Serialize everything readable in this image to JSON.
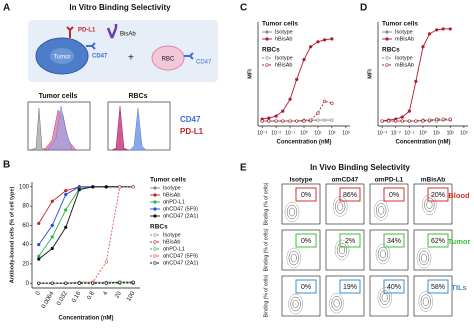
{
  "panel_a": {
    "panel": "A",
    "title": "In Vitro Binding Selectivity",
    "labels": {
      "pdl1": "PD-L1",
      "cd47": "CD47",
      "tumor": "Tumor",
      "bisab": "BisAb",
      "plus": "+",
      "rbc": "RBC",
      "rbc_cd47": "CD47"
    },
    "histogram_titles": [
      "Tumor cells",
      "RBCs"
    ],
    "legend": [
      {
        "name": "CD47",
        "color": "#3a6fd8"
      },
      {
        "name": "PD-L1",
        "color": "#c0272d"
      }
    ]
  },
  "chart_data": [
    {
      "type": "line",
      "panel": "B",
      "categories": [
        "0",
        "0.0064",
        "0.032",
        "0.16",
        "0.8",
        "4",
        "20",
        "100"
      ],
      "xlabel": "Concentration (nM)",
      "ylabel": "Antibody-bound cells (% of cell type)",
      "ylim": [
        -5,
        105
      ],
      "yticks": [
        0,
        20,
        40,
        60,
        80,
        100
      ],
      "series_groups": [
        {
          "name": "Tumor cells",
          "line_style": "solid",
          "series": [
            {
              "name": "Isotype",
              "color": "#888888",
              "values": [
                0,
                0,
                0,
                1,
                1,
                1,
                1,
                1
              ]
            },
            {
              "name": "hBisAb",
              "color": "#c0272d",
              "values": [
                62,
                85,
                96,
                100,
                100,
                100,
                100,
                100
              ]
            },
            {
              "name": "αhPD-L1",
              "color": "#2eb34a",
              "values": [
                28,
                48,
                76,
                98,
                100,
                100,
                100,
                100
              ]
            },
            {
              "name": "αhCD47 (5F9)",
              "color": "#1f4fd6",
              "values": [
                40,
                60,
                92,
                100,
                100,
                100,
                100,
                100
              ]
            },
            {
              "name": "αhCD47 (2A1)",
              "color": "#111111",
              "values": [
                25,
                36,
                58,
                97,
                100,
                100,
                100,
                100
              ]
            }
          ]
        },
        {
          "name": "RBCs",
          "line_style": "dashed",
          "series": [
            {
              "name": "Isotype",
              "color": "#888888",
              "values": [
                0,
                0,
                0,
                0,
                0,
                0,
                0,
                0
              ]
            },
            {
              "name": "hBisAb",
              "color": "#c0272d",
              "values": [
                0,
                0,
                0,
                0,
                0,
                0,
                0,
                0
              ]
            },
            {
              "name": "αhPD-L1",
              "color": "#2eb34a",
              "values": [
                0,
                0,
                0,
                0,
                0,
                0,
                0,
                0
              ]
            },
            {
              "name": "αhCD47 (5F9)",
              "color": "#e05a5a",
              "values": [
                0,
                0,
                0,
                0,
                1,
                22,
                100,
                100
              ]
            },
            {
              "name": "αhCD47 (2A1)",
              "color": "#111111",
              "values": [
                0,
                0,
                0,
                0,
                0,
                0,
                1,
                1
              ]
            }
          ]
        }
      ]
    },
    {
      "type": "line",
      "panel": "C",
      "x": [
        0.001,
        0.003,
        0.01,
        0.03,
        0.1,
        0.3,
        1,
        3,
        10,
        30,
        100
      ],
      "x_scale": "log",
      "xlim": [
        0.0005,
        2000
      ],
      "xticks": [
        {
          "value": 0.001,
          "label": "10⁻³"
        },
        {
          "value": 0.01,
          "label": "10⁻²"
        },
        {
          "value": 0.1,
          "label": "10⁻¹"
        },
        {
          "value": 1,
          "label": "10⁰"
        },
        {
          "value": 10,
          "label": "10¹"
        },
        {
          "value": 100,
          "label": "10²"
        },
        {
          "value": 1000,
          "label": "10³"
        }
      ],
      "xlabel": "Concentration (nM)",
      "ylabel": "MFI",
      "ylim": [
        -5,
        100
      ],
      "series_groups": [
        {
          "name": "Tumor cells",
          "line_style": "solid",
          "series": [
            {
              "name": "Isotype",
              "color": "#888888",
              "values": [
                0,
                0,
                0,
                0,
                0,
                0,
                1,
                1,
                1,
                1,
                1
              ]
            },
            {
              "name": "hBisAb",
              "color": "#b01c2e",
              "values": [
                2,
                3,
                5,
                10,
                22,
                42,
                62,
                75,
                80,
                82,
                83
              ]
            }
          ]
        },
        {
          "name": "RBCs",
          "line_style": "dashed",
          "series": [
            {
              "name": "Isotype",
              "color": "#888888",
              "values": [
                0,
                0,
                0,
                0,
                0,
                0,
                0,
                0,
                1,
                1,
                1
              ]
            },
            {
              "name": "hBisAb",
              "color": "#b01c2e",
              "values": [
                0,
                0,
                0,
                0,
                0,
                0,
                0,
                1,
                8,
                20,
                18
              ]
            }
          ]
        }
      ]
    },
    {
      "type": "line",
      "panel": "D",
      "x": [
        0.001,
        0.003,
        0.01,
        0.03,
        0.1,
        0.3,
        1,
        3,
        10,
        30,
        100
      ],
      "x_scale": "log",
      "xlim": [
        0.0005,
        2000
      ],
      "xticks": [
        {
          "value": 0.001,
          "label": "10⁻³"
        },
        {
          "value": 0.01,
          "label": "10⁻²"
        },
        {
          "value": 0.1,
          "label": "10⁻¹"
        },
        {
          "value": 1,
          "label": "10⁰"
        },
        {
          "value": 10,
          "label": "10¹"
        },
        {
          "value": 100,
          "label": "10²"
        },
        {
          "value": 1000,
          "label": "10³"
        }
      ],
      "xlabel": "Concentration (nM)",
      "ylabel": "MFI",
      "ylim": [
        -5,
        100
      ],
      "series_groups": [
        {
          "name": "Tumor cells",
          "line_style": "solid",
          "series": [
            {
              "name": "Isotype",
              "color": "#888888",
              "values": [
                0,
                0,
                0,
                0,
                0,
                0,
                1,
                1,
                1,
                1,
                1
              ]
            },
            {
              "name": "mBisAb",
              "color": "#b01c2e",
              "values": [
                0,
                1,
                2,
                4,
                10,
                40,
                75,
                88,
                92,
                93,
                93
              ]
            }
          ]
        },
        {
          "name": "RBCs",
          "line_style": "dashed",
          "series": [
            {
              "name": "Isotype",
              "color": "#888888",
              "values": [
                0,
                0,
                0,
                0,
                0,
                0,
                0,
                0,
                0,
                1,
                1
              ]
            },
            {
              "name": "mBisAb",
              "color": "#b01c2e",
              "values": [
                0,
                0,
                0,
                0,
                0,
                0,
                0,
                1,
                2,
                2,
                2
              ]
            }
          ]
        }
      ]
    }
  ],
  "panel_e": {
    "panel": "E",
    "title": "In Vivo Binding Selectivity",
    "columns": [
      "Isotype",
      "αmCD47",
      "αmPD-L1",
      "mBisAb"
    ],
    "ylabel": "Binding (% of cells)",
    "rows": [
      {
        "name": "Blood",
        "color": "#d9302c",
        "values": [
          "0%",
          "86%",
          "0%",
          "20%"
        ]
      },
      {
        "name": "Tumor",
        "color": "#3cbf3c",
        "values": [
          "0%",
          "2%",
          "34%",
          "62%"
        ]
      },
      {
        "name": "TILs",
        "color": "#3a8fd0",
        "values": [
          "0%",
          "19%",
          "40%",
          "58%"
        ]
      }
    ]
  }
}
